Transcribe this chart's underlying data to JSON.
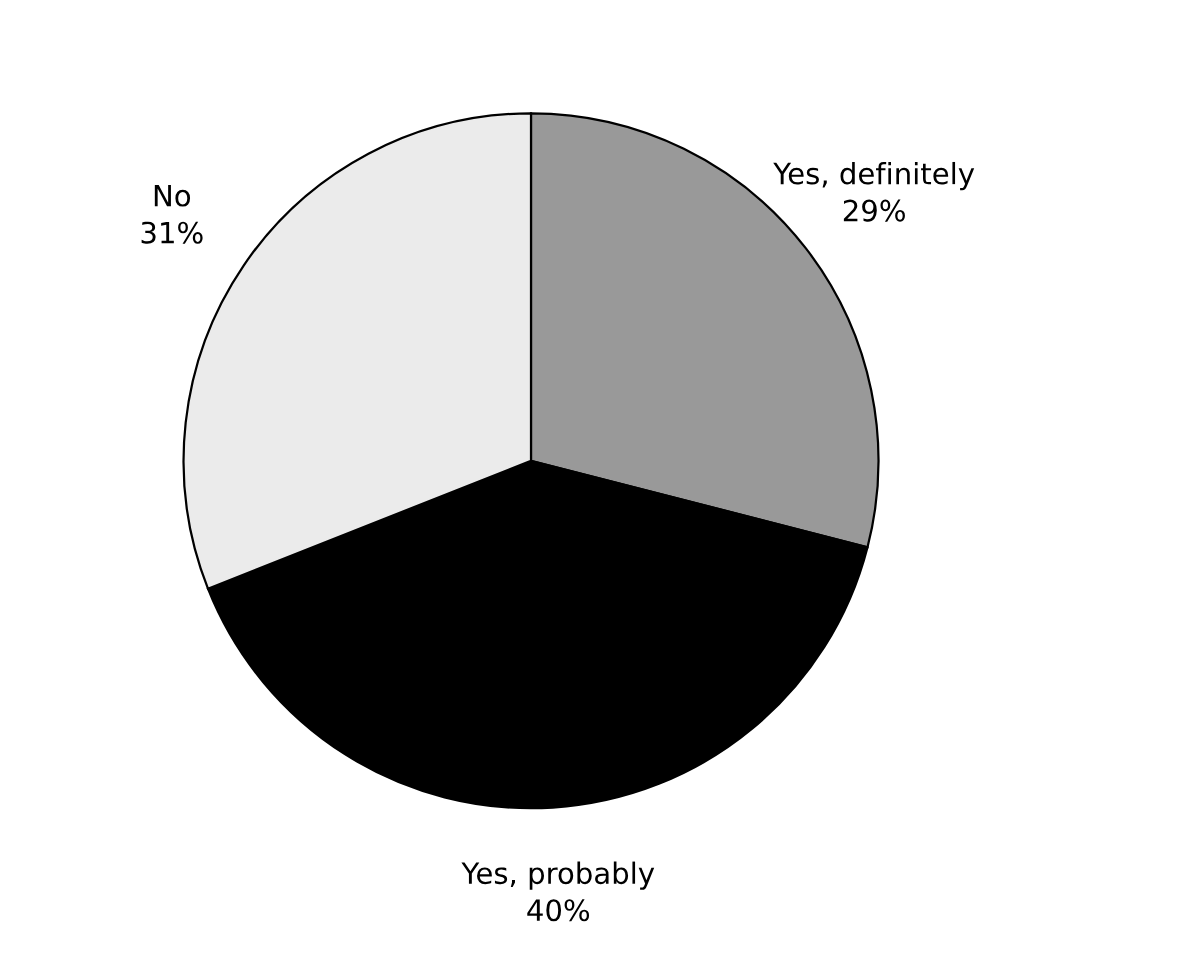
{
  "chart_data": {
    "type": "pie",
    "categories": [
      "Yes, definitely",
      "Yes, probably",
      "No"
    ],
    "values": [
      29,
      40,
      31
    ],
    "colors": [
      "#999999",
      "#000000",
      "#ebebeb"
    ],
    "value_labels": [
      "29%",
      "40%",
      "31%"
    ]
  }
}
